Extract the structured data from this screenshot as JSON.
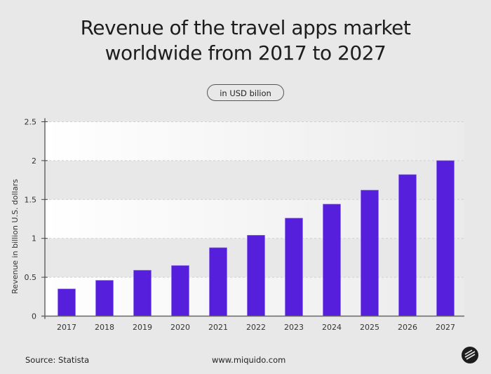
{
  "header": {
    "title_line1": "Revenue of the travel apps market",
    "title_line2": "worldwide from 2017 to 2027",
    "unit_badge": "in USD bilion"
  },
  "footer": {
    "source": "Source: Statista",
    "website": "www.miquido.com",
    "logo": "miquido-logo"
  },
  "colors": {
    "bar": "#561fdc",
    "background": "#e8e8e8"
  },
  "chart_data": {
    "type": "bar",
    "title": "Revenue of the travel apps market worldwide from 2017 to 2027",
    "ylabel": "Revenue in billion U.S. dollars",
    "xlabel": "",
    "ylim": [
      0,
      2.5
    ],
    "yticks": [
      "0",
      "0.5",
      "1",
      "1.5",
      "2",
      "2.5"
    ],
    "grid": true,
    "categories": [
      "2017",
      "2018",
      "2019",
      "2020",
      "2021",
      "2022",
      "2023",
      "2024",
      "2025",
      "2026",
      "2027"
    ],
    "values": [
      0.35,
      0.46,
      0.59,
      0.65,
      0.88,
      1.04,
      1.26,
      1.44,
      1.62,
      1.82,
      2.0
    ]
  }
}
